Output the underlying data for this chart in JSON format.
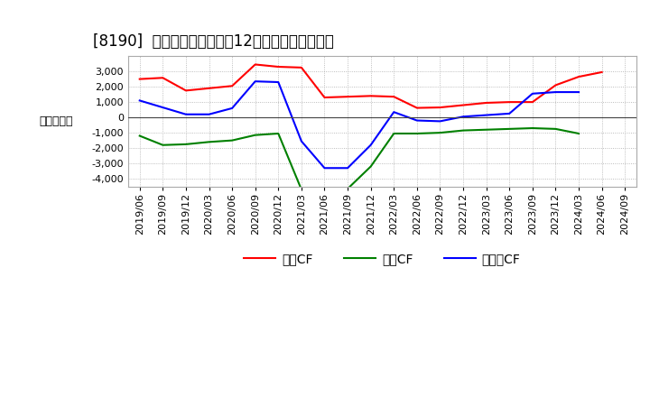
{
  "title": "[8190]  キャッシュフローの12か月移動合計の推移",
  "ylabel": "（百万円）",
  "dates": [
    "2019/06",
    "2019/09",
    "2019/12",
    "2020/03",
    "2020/06",
    "2020/09",
    "2020/12",
    "2021/03",
    "2021/06",
    "2021/09",
    "2021/12",
    "2022/03",
    "2022/06",
    "2022/09",
    "2022/12",
    "2023/03",
    "2023/06",
    "2023/09",
    "2023/12",
    "2024/03",
    "2024/06",
    "2024/09"
  ],
  "operating_cf": [
    2500,
    2580,
    1750,
    1900,
    2050,
    3450,
    3300,
    3250,
    1300,
    1350,
    1400,
    1350,
    620,
    650,
    800,
    950,
    1000,
    1000,
    2100,
    2650,
    2950,
    null
  ],
  "investing_cf": [
    -1200,
    -1800,
    -1750,
    -1600,
    -1500,
    -1150,
    -1050,
    -4700,
    -4700,
    -4650,
    -3200,
    -1050,
    -1050,
    -1000,
    -850,
    -800,
    -750,
    -700,
    -750,
    -1050,
    null,
    null
  ],
  "free_cf": [
    1100,
    650,
    200,
    200,
    600,
    2350,
    2300,
    -1550,
    -3300,
    -3300,
    -1800,
    350,
    -200,
    -250,
    50,
    150,
    250,
    1550,
    1650,
    1650,
    null,
    null
  ],
  "ylim": [
    -4500,
    4000
  ],
  "yticks": [
    -4000,
    -3000,
    -2000,
    -1000,
    0,
    1000,
    2000,
    3000
  ],
  "operating_color": "#ff0000",
  "investing_color": "#008000",
  "free_color": "#0000ff",
  "bg_color": "#ffffff",
  "plot_bg_color": "#ffffff",
  "grid_color": "#aaaaaa",
  "title_fontsize": 12,
  "label_fontsize": 9,
  "tick_fontsize": 8,
  "legend_operating": "営業CF",
  "legend_investing": "投資CF",
  "legend_free": "フリーCF"
}
